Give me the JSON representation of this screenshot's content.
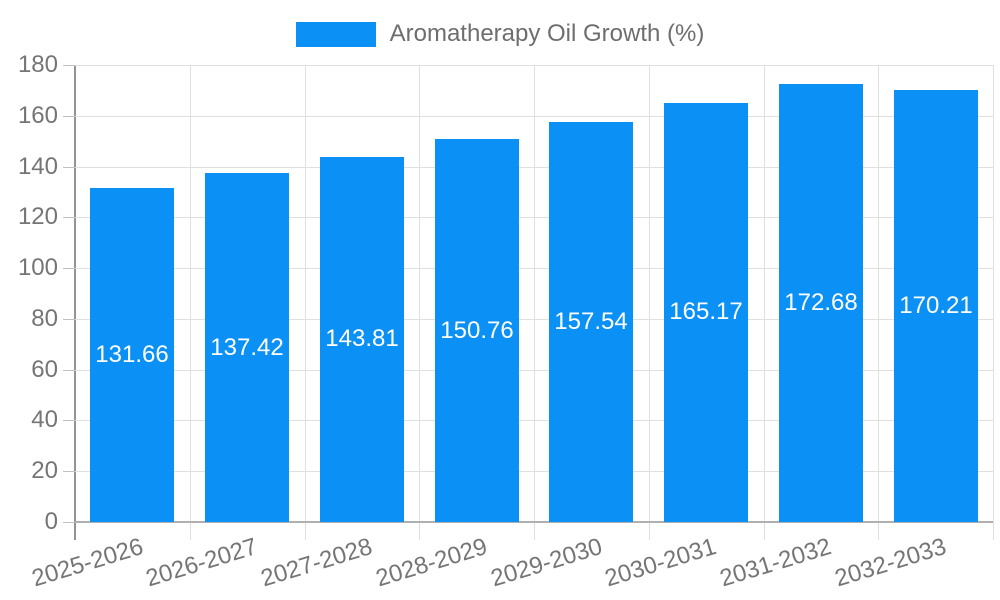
{
  "legend": {
    "label": "Aromatherapy Oil Growth (%)"
  },
  "chart_data": {
    "type": "bar",
    "title": "",
    "xlabel": "",
    "ylabel": "",
    "categories": [
      "2025-2026",
      "2026-2027",
      "2027-2028",
      "2028-2029",
      "2029-2030",
      "2030-2031",
      "2031-2032",
      "2032-2033"
    ],
    "series": [
      {
        "name": "Aromatherapy Oil Growth (%)",
        "values": [
          131.66,
          137.42,
          143.81,
          150.76,
          157.54,
          165.17,
          172.68,
          170.21
        ]
      }
    ],
    "data_labels": [
      "131.66",
      "137.42",
      "143.81",
      "150.76",
      "157.54",
      "165.17",
      "172.68",
      "170.21"
    ],
    "ylim": [
      0,
      180
    ],
    "ytick_step": 20,
    "ytick_labels": [
      "0",
      "20",
      "40",
      "60",
      "80",
      "100",
      "120",
      "140",
      "160",
      "180"
    ],
    "grid": true,
    "legend_position": "top-center",
    "colors": {
      "bar": "#0b90f5",
      "data_label": "#ffffff",
      "axis_text": "#757575",
      "legend_text": "#6e6e6e",
      "grid": "#e0e0e0",
      "axis_line": "#939393",
      "baseline": "#b0b0b0",
      "tick": "#c0c0c0",
      "background": "#ffffff"
    }
  }
}
